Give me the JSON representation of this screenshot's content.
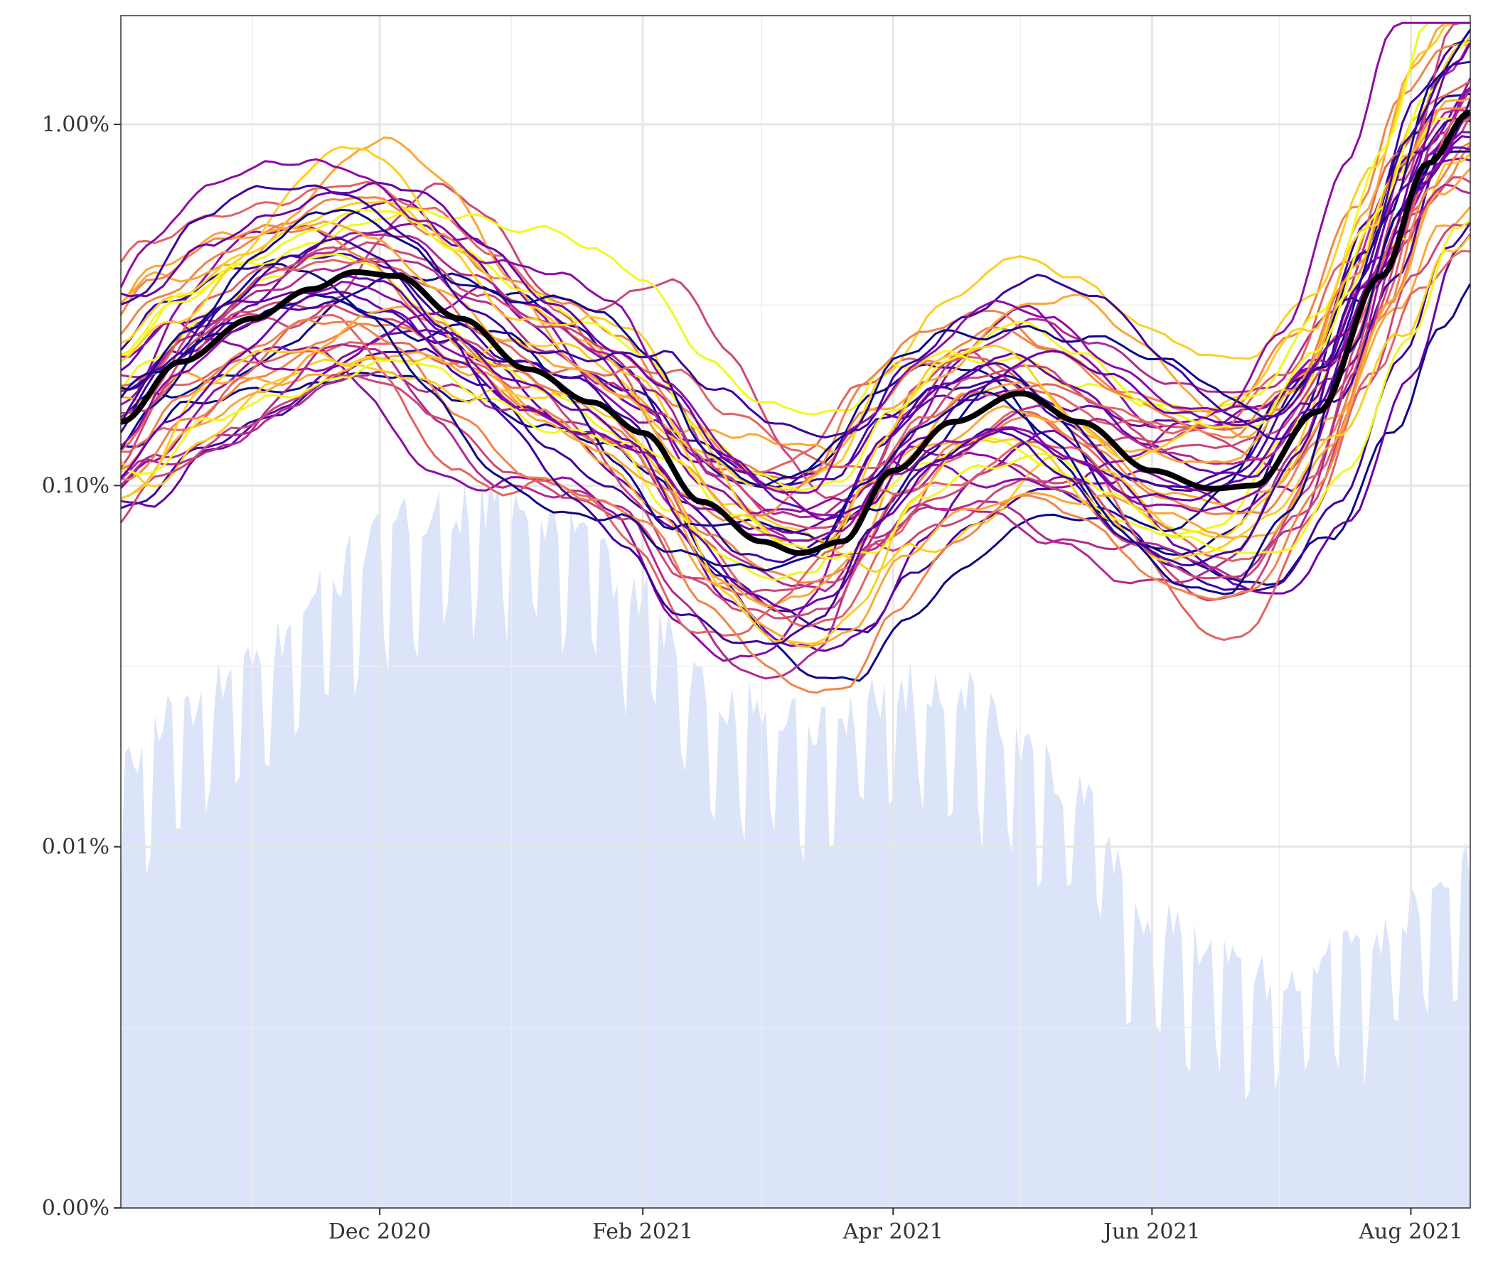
{
  "chart_data": {
    "type": "line",
    "title": "",
    "xlabel": "",
    "ylabel": "",
    "y_scale": "log",
    "x_range": [
      "2020-10-01",
      "2021-08-15"
    ],
    "y_range": [
      "0.00%",
      "2.00%"
    ],
    "y_ticks": [
      {
        "value": 1e-05,
        "label": "0.00%"
      },
      {
        "value": 0.0001,
        "label": "0.01%"
      },
      {
        "value": 0.001,
        "label": "0.10%"
      },
      {
        "value": 0.01,
        "label": "1.00%"
      }
    ],
    "x_ticks": [
      {
        "date": "2020-12-01",
        "label": "Dec 2020"
      },
      {
        "date": "2021-02-01",
        "label": "Feb 2021"
      },
      {
        "date": "2021-04-01",
        "label": "Apr 2021"
      },
      {
        "date": "2021-06-01",
        "label": "Jun 2021"
      },
      {
        "date": "2021-08-01",
        "label": "Aug 2021"
      }
    ],
    "x_minor_ticks": [
      "2020-11-01",
      "2021-01-01",
      "2021-03-01",
      "2021-05-01",
      "2021-07-01"
    ],
    "y_minor_ticks": [
      3.16e-05,
      0.000316,
      0.00316
    ],
    "grid": true,
    "legend": "none",
    "colors": {
      "background_area": "#dbe4f8",
      "overall_line": "#000000",
      "grid": "#e6e6e6",
      "palette": [
        "#0d0887",
        "#3d049b",
        "#6a00a8",
        "#8f0da4",
        "#b12a90",
        "#cc4778",
        "#e16462",
        "#f1844b",
        "#fca636",
        "#fcce25",
        "#f0f921"
      ]
    },
    "overall_series": {
      "x": [
        "2020-10-01",
        "2020-10-15",
        "2020-11-01",
        "2020-11-15",
        "2020-11-25",
        "2020-12-05",
        "2020-12-20",
        "2021-01-05",
        "2021-01-20",
        "2021-02-01",
        "2021-02-15",
        "2021-03-01",
        "2021-03-10",
        "2021-03-20",
        "2021-04-01",
        "2021-04-15",
        "2021-05-01",
        "2021-05-15",
        "2021-06-01",
        "2021-06-15",
        "2021-06-25",
        "2021-07-10",
        "2021-07-25",
        "2021-08-05",
        "2021-08-15"
      ],
      "y": [
        0.0015,
        0.0022,
        0.0029,
        0.0035,
        0.0039,
        0.0038,
        0.0029,
        0.0021,
        0.0017,
        0.0014,
        0.0009,
        0.0007,
        0.00065,
        0.0007,
        0.0011,
        0.0015,
        0.0018,
        0.0015,
        0.0011,
        0.00098,
        0.001,
        0.0016,
        0.0038,
        0.0078,
        0.0108
      ]
    },
    "background_series": {
      "x": [
        "2020-10-01",
        "2020-10-15",
        "2020-11-01",
        "2020-11-15",
        "2020-12-01",
        "2020-12-15",
        "2021-01-01",
        "2021-01-15",
        "2021-02-01",
        "2021-02-15",
        "2021-03-01",
        "2021-03-15",
        "2021-04-01",
        "2021-04-15",
        "2021-05-01",
        "2021-05-15",
        "2021-06-01",
        "2021-06-15",
        "2021-07-01",
        "2021-07-15",
        "2021-08-01",
        "2021-08-15"
      ],
      "y": [
        0.00015,
        0.00022,
        0.00028,
        0.00045,
        0.00065,
        0.0008,
        0.0008,
        0.0007,
        0.00045,
        0.00025,
        0.00022,
        0.0002,
        0.00025,
        0.00025,
        0.00018,
        0.00013,
        5.5e-05,
        5e-05,
        4e-05,
        4.5e-05,
        6e-05,
        8e-05
      ]
    }
  }
}
